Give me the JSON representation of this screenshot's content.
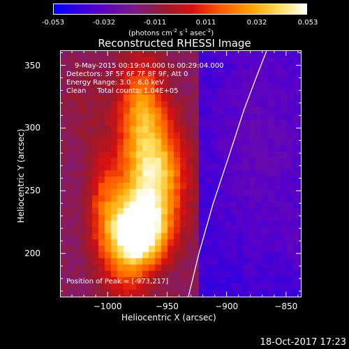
{
  "colorbar": {
    "ticks": [
      "-0.053",
      "-0.032",
      "-0.011",
      "0.011",
      "0.032",
      "0.053"
    ],
    "unit_label_text": "(photons cm",
    "unit_sup1": "-2",
    "unit_mid1": " s",
    "unit_sup2": "-1",
    "unit_mid2": " asec",
    "unit_sup3": "-2",
    "unit_end": ")"
  },
  "chart_data": {
    "type": "heatmap",
    "title": "Reconstructed RHESSI Image",
    "xlabel": "Heliocentric X (arcsec)",
    "ylabel": "Heliocentric Y (arcsec)",
    "xlim": [
      -1040,
      -837
    ],
    "ylim": [
      165,
      362
    ],
    "x_ticks": [
      -1000,
      -950,
      -900,
      -850
    ],
    "x_tick_labels": [
      "−1000",
      "−950",
      "−900",
      "−850"
    ],
    "y_ticks": [
      200,
      250,
      300,
      350
    ],
    "y_tick_labels": [
      "200",
      "250",
      "300",
      "350"
    ],
    "color_range": [
      -0.053,
      0.053
    ],
    "peak": [
      -973,
      217
    ],
    "limb_curve": {
      "x": [
        -933,
        -924,
        -912,
        -898,
        -886,
        -874,
        -867
      ],
      "y": [
        165,
        200,
        240,
        280,
        315,
        345,
        362
      ]
    },
    "annotations": [
      "9-May-2015 00:19:04.000 to 00:29:04.000",
      "Detectors: 3F 5F 6F 7F 8F 9F, Att 0",
      "Energy Range: 3.0 - 6.0 keV",
      "Clean     Total counts: 1.04E+05",
      "Position of Peak = [-973,217]"
    ]
  },
  "footer": {
    "timestamp": "18-Oct-2017 17:23"
  }
}
